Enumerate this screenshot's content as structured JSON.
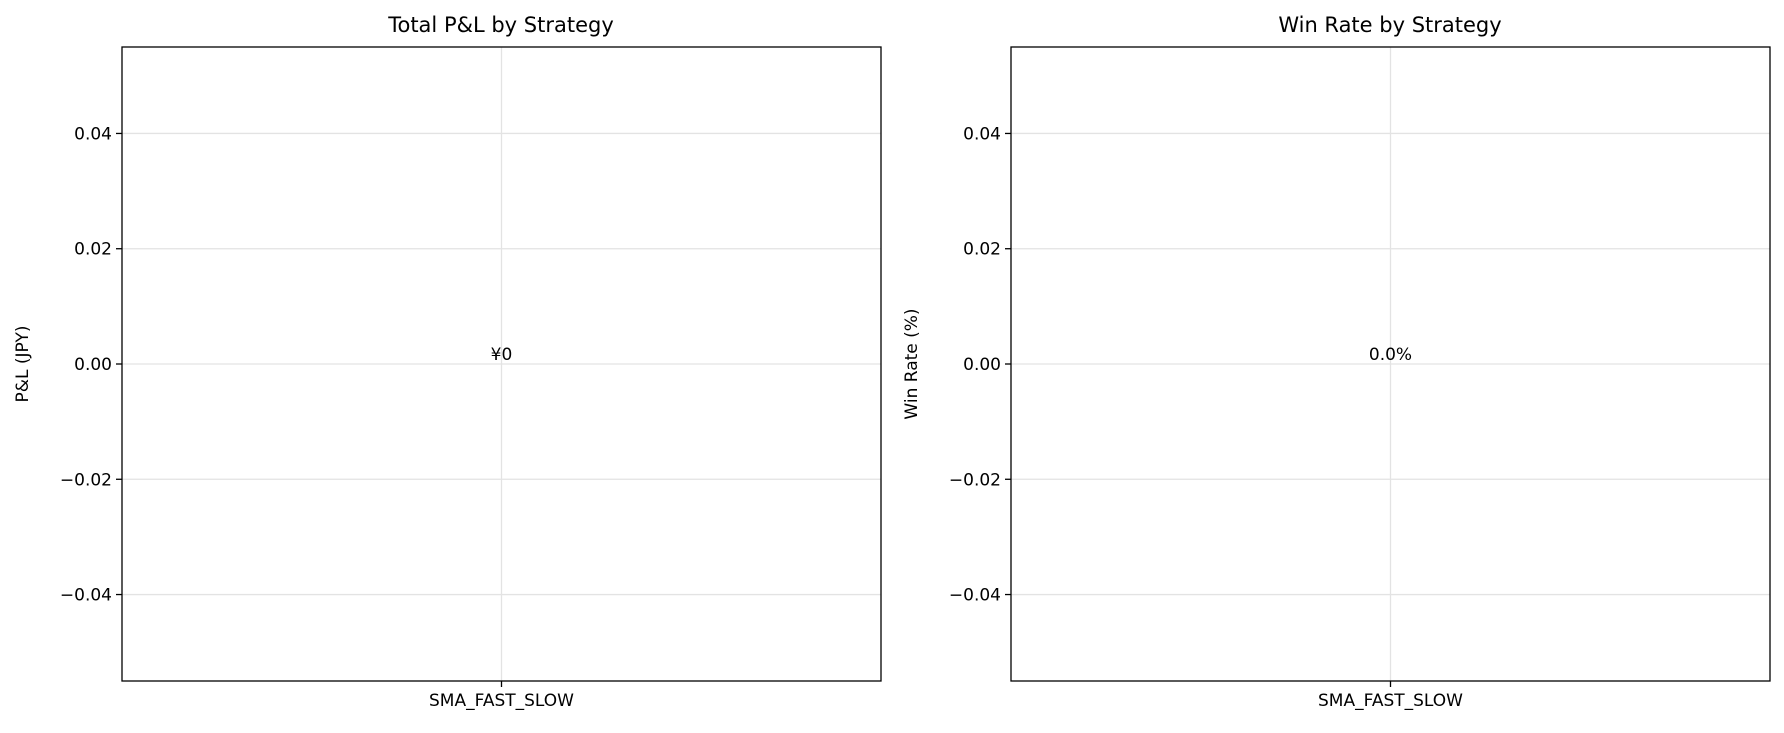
{
  "chart_data": [
    {
      "type": "bar",
      "title": "Total P&L by Strategy",
      "xlabel": "",
      "ylabel": "P&L (JPY)",
      "categories": [
        "SMA_FAST_SLOW"
      ],
      "values": [
        0
      ],
      "data_labels": [
        "¥0"
      ],
      "ylim": [
        -0.055,
        0.055
      ],
      "yticks": [
        -0.04,
        -0.02,
        0.0,
        0.02,
        0.04
      ],
      "ytick_labels": [
        "−0.04",
        "−0.02",
        "0.00",
        "0.02",
        "0.04"
      ],
      "grid": true
    },
    {
      "type": "bar",
      "title": "Win Rate by Strategy",
      "xlabel": "",
      "ylabel": "Win Rate (%)",
      "categories": [
        "SMA_FAST_SLOW"
      ],
      "values": [
        0
      ],
      "data_labels": [
        "0.0%"
      ],
      "ylim": [
        -0.055,
        0.055
      ],
      "yticks": [
        -0.04,
        -0.02,
        0.0,
        0.02,
        0.04
      ],
      "ytick_labels": [
        "−0.04",
        "−0.02",
        "0.00",
        "0.02",
        "0.04"
      ],
      "grid": true
    }
  ]
}
